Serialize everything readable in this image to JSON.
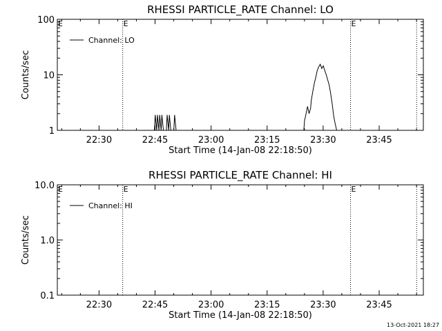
{
  "footer_date": "13-Oct-2021 18:27",
  "colors": {
    "line": "#000000",
    "background": "#ffffff"
  },
  "chart_data": [
    {
      "type": "line",
      "title": "RHESSI PARTICLE_RATE Channel: LO",
      "xlabel": "Start Time (14-Jan-08 22:18:50)",
      "ylabel": "Counts/sec",
      "y_scale": "log",
      "ylim": [
        1,
        100
      ],
      "y_ticks": [
        1,
        10,
        100
      ],
      "y_tick_labels": [
        "1",
        "10",
        "100"
      ],
      "x_unit": "minutes after 22:18:50",
      "xlim": [
        0,
        98
      ],
      "x_ticks": [
        11.17,
        26.17,
        41.17,
        56.17,
        71.17,
        86.17
      ],
      "x_tick_labels": [
        "22:30",
        "22:45",
        "23:00",
        "23:15",
        "23:30",
        "23:45"
      ],
      "grid": false,
      "legend": {
        "position": "top-left",
        "entries": [
          "Channel: LO"
        ]
      },
      "event_lines": [
        {
          "x": 17.5,
          "label": "E"
        },
        {
          "x": 78.5,
          "label": "E"
        },
        {
          "x": 96.2,
          "label": ""
        }
      ],
      "edge_labels": {
        "left": "E"
      },
      "series": [
        {
          "name": "Channel: LO",
          "x": [
            0,
            26.0,
            26.2,
            26.6,
            26.8,
            27.2,
            27.4,
            27.8,
            28.0,
            28.4,
            28.6,
            29.2,
            29.4,
            29.8,
            30.0,
            30.4,
            30.6,
            31.2,
            31.4,
            31.8,
            32.0,
            66.0,
            66.2,
            66.6,
            67.0,
            67.4,
            67.8,
            68.0,
            68.4,
            68.8,
            69.2,
            69.6,
            70.0,
            70.4,
            70.8,
            71.2,
            71.6,
            72.0,
            72.4,
            72.8,
            73.2,
            73.6,
            74.0,
            74.4,
            74.8,
            75.0,
            98
          ],
          "y": [
            1,
            1,
            1.9,
            1,
            1.9,
            1,
            1.9,
            1,
            1.9,
            1,
            1,
            1,
            1.9,
            1,
            1.9,
            1,
            1,
            1,
            1.9,
            1,
            1,
            1,
            1.5,
            2.0,
            2.7,
            2.0,
            2.5,
            3.5,
            5,
            7,
            9,
            12,
            14,
            15.5,
            13,
            14.5,
            12,
            10,
            8,
            6.5,
            4.5,
            3,
            1.8,
            1.3,
            1,
            1,
            1
          ]
        }
      ]
    },
    {
      "type": "line",
      "title": "RHESSI PARTICLE_RATE Channel: HI",
      "xlabel": "Start Time (14-Jan-08 22:18:50)",
      "ylabel": "Counts/sec",
      "y_scale": "log",
      "ylim": [
        0.1,
        10
      ],
      "y_ticks": [
        0.1,
        1,
        10
      ],
      "y_tick_labels": [
        "0.1",
        "1.0",
        "10.0"
      ],
      "x_unit": "minutes after 22:18:50",
      "xlim": [
        0,
        98
      ],
      "x_ticks": [
        11.17,
        26.17,
        41.17,
        56.17,
        71.17,
        86.17
      ],
      "x_tick_labels": [
        "22:30",
        "22:45",
        "23:00",
        "23:15",
        "23:30",
        "23:45"
      ],
      "grid": false,
      "legend": {
        "position": "top-left",
        "entries": [
          "Channel: HI"
        ]
      },
      "event_lines": [
        {
          "x": 17.5,
          "label": "E"
        },
        {
          "x": 78.5,
          "label": "E"
        },
        {
          "x": 96.2,
          "label": ""
        }
      ],
      "edge_labels": {
        "left": "E"
      },
      "series": [
        {
          "name": "Channel: HI",
          "x": [],
          "y": []
        }
      ]
    }
  ]
}
